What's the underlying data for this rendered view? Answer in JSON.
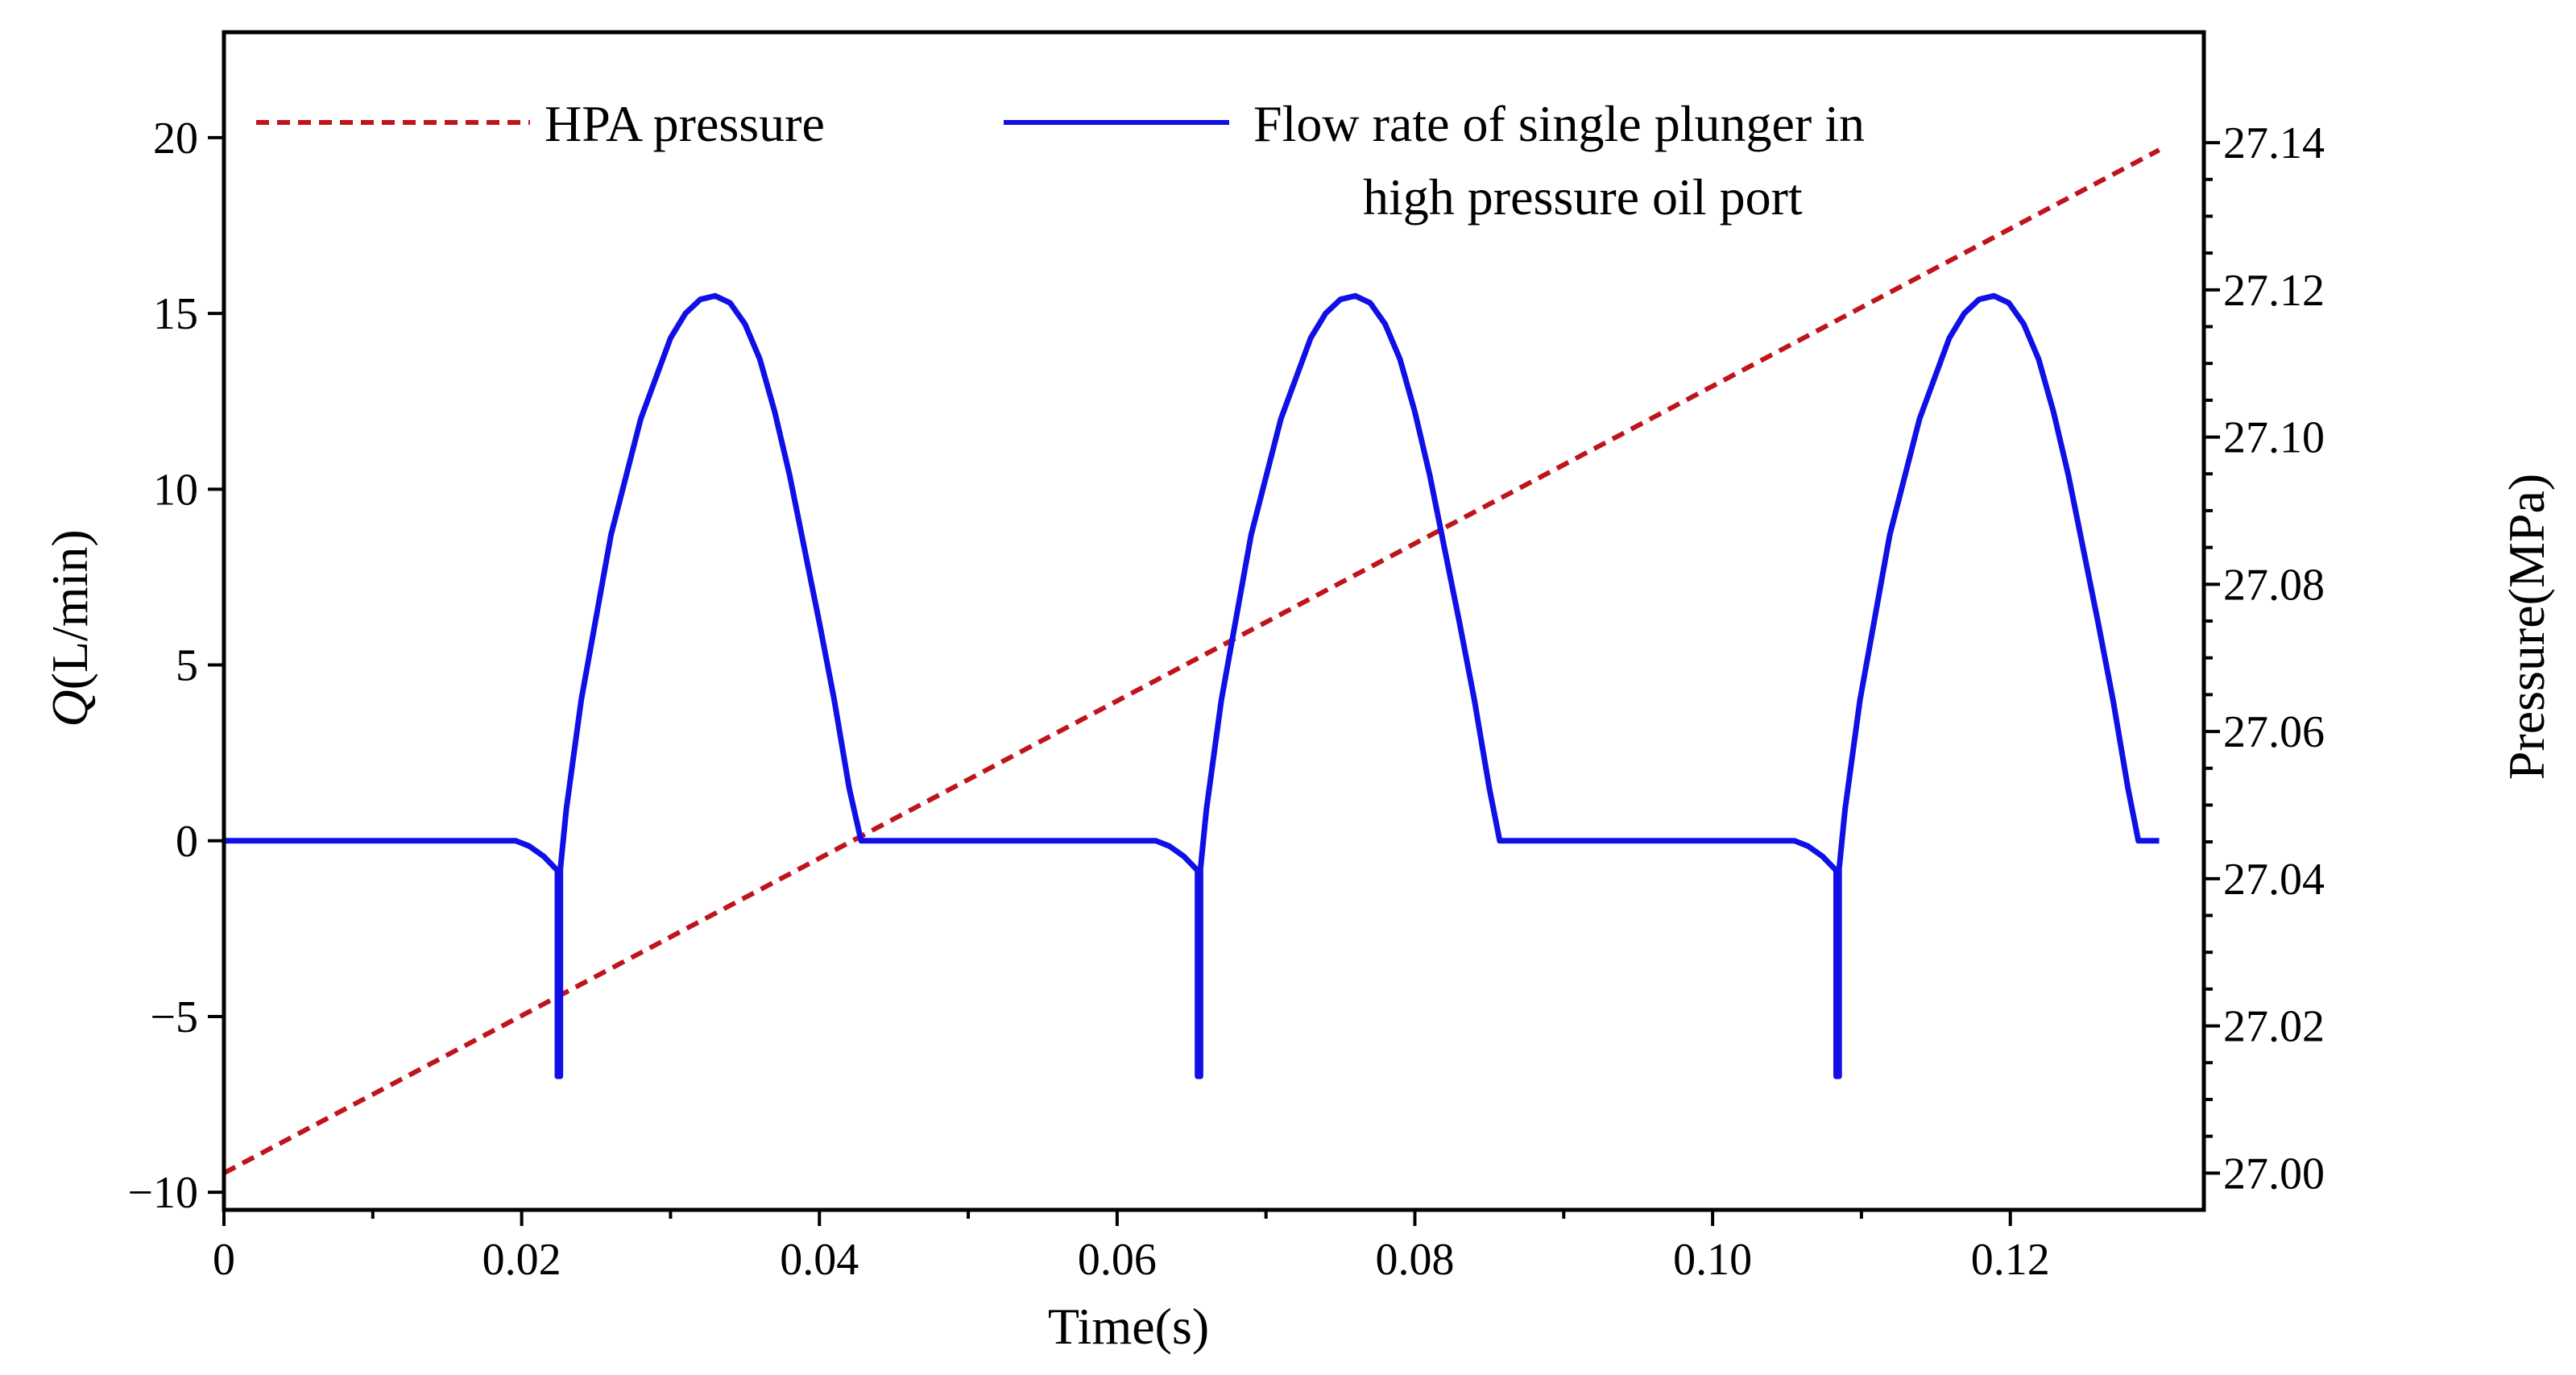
{
  "chart_data": {
    "type": "line",
    "title": "",
    "xlabel": "Time(s)",
    "ylabel_left": {
      "italic": "Q",
      "rest": "(L/min)"
    },
    "ylabel_right": "Pressure(MPa)",
    "xlim": [
      0,
      0.133
    ],
    "ylim_left": [
      -10.5,
      23
    ],
    "ylim_right": [
      26.995,
      27.155
    ],
    "x_ticks": [
      0,
      0.02,
      0.04,
      0.06,
      0.08,
      0.1,
      0.12
    ],
    "x_tick_labels": [
      "0",
      "0.02",
      "0.04",
      "0.06",
      "0.08",
      "0.10",
      "0.12"
    ],
    "y_left_ticks": [
      -10,
      -5,
      0,
      5,
      10,
      15,
      20
    ],
    "y_left_tick_labels": [
      "−10",
      "−5",
      "0",
      "5",
      "10",
      "15",
      "20"
    ],
    "y_right_ticks": [
      27.0,
      27.02,
      27.04,
      27.06,
      27.08,
      27.1,
      27.12,
      27.14
    ],
    "y_right_tick_labels": [
      "27.00",
      "27.02",
      "27.04",
      "27.06",
      "27.08",
      "27.10",
      "27.12",
      "27.14"
    ],
    "legend_position": "top",
    "grid": false,
    "series": [
      {
        "name": "HPA pressure",
        "axis": "right",
        "color": "#c0141c",
        "style": "dashed",
        "x": [
          0,
          0.13
        ],
        "y": [
          27.0,
          27.139
        ]
      },
      {
        "name": "Flow rate of single plunger in high pressure oil port",
        "legend_lines": [
          "Flow rate of single plunger in",
          "high pressure oil port"
        ],
        "axis": "left",
        "color": "#1010e6",
        "style": "solid",
        "x": [
          0,
          0.0196,
          0.0205,
          0.0215,
          0.0223,
          0.0224,
          0.0224,
          0.0226,
          0.0226,
          0.023,
          0.024,
          0.026,
          0.028,
          0.03,
          0.031,
          0.032,
          0.033,
          0.034,
          0.035,
          0.036,
          0.037,
          0.038,
          0.039,
          0.04,
          0.041,
          0.042,
          0.0428,
          0.0432,
          0.0626,
          0.0635,
          0.0645,
          0.0653,
          0.0654,
          0.0654,
          0.0656,
          0.0656,
          0.066,
          0.067,
          0.069,
          0.071,
          0.073,
          0.074,
          0.075,
          0.076,
          0.077,
          0.078,
          0.079,
          0.08,
          0.081,
          0.082,
          0.083,
          0.084,
          0.085,
          0.0857,
          0.0862,
          0.1055,
          0.1064,
          0.1074,
          0.1082,
          0.1083,
          0.1083,
          0.1085,
          0.1085,
          0.1089,
          0.1099,
          0.1119,
          0.1139,
          0.1159,
          0.1169,
          0.1179,
          0.1189,
          0.1199,
          0.1209,
          0.1219,
          0.1229,
          0.1239,
          0.1249,
          0.1259,
          0.1269,
          0.1279,
          0.1286,
          0.129,
          0.13
        ],
        "y": [
          0,
          0,
          -0.15,
          -0.45,
          -0.8,
          -0.85,
          -6.7,
          -6.7,
          -0.8,
          0.9,
          4.0,
          8.7,
          12.0,
          14.3,
          15.0,
          15.4,
          15.5,
          15.3,
          14.7,
          13.7,
          12.2,
          10.4,
          8.3,
          6.2,
          4.0,
          1.5,
          0,
          0,
          0,
          -0.15,
          -0.45,
          -0.8,
          -0.85,
          -6.7,
          -6.7,
          -0.8,
          0.9,
          4.0,
          8.7,
          12.0,
          14.3,
          15.0,
          15.4,
          15.5,
          15.3,
          14.7,
          13.7,
          12.2,
          10.4,
          8.3,
          6.2,
          4.0,
          1.5,
          0,
          0,
          0,
          -0.15,
          -0.45,
          -0.8,
          -0.85,
          -6.7,
          -6.7,
          -0.8,
          0.9,
          4.0,
          8.7,
          12.0,
          14.3,
          15.0,
          15.4,
          15.5,
          15.3,
          14.7,
          13.7,
          12.2,
          10.4,
          8.3,
          6.2,
          4.0,
          1.5,
          0,
          0,
          0
        ]
      }
    ]
  }
}
